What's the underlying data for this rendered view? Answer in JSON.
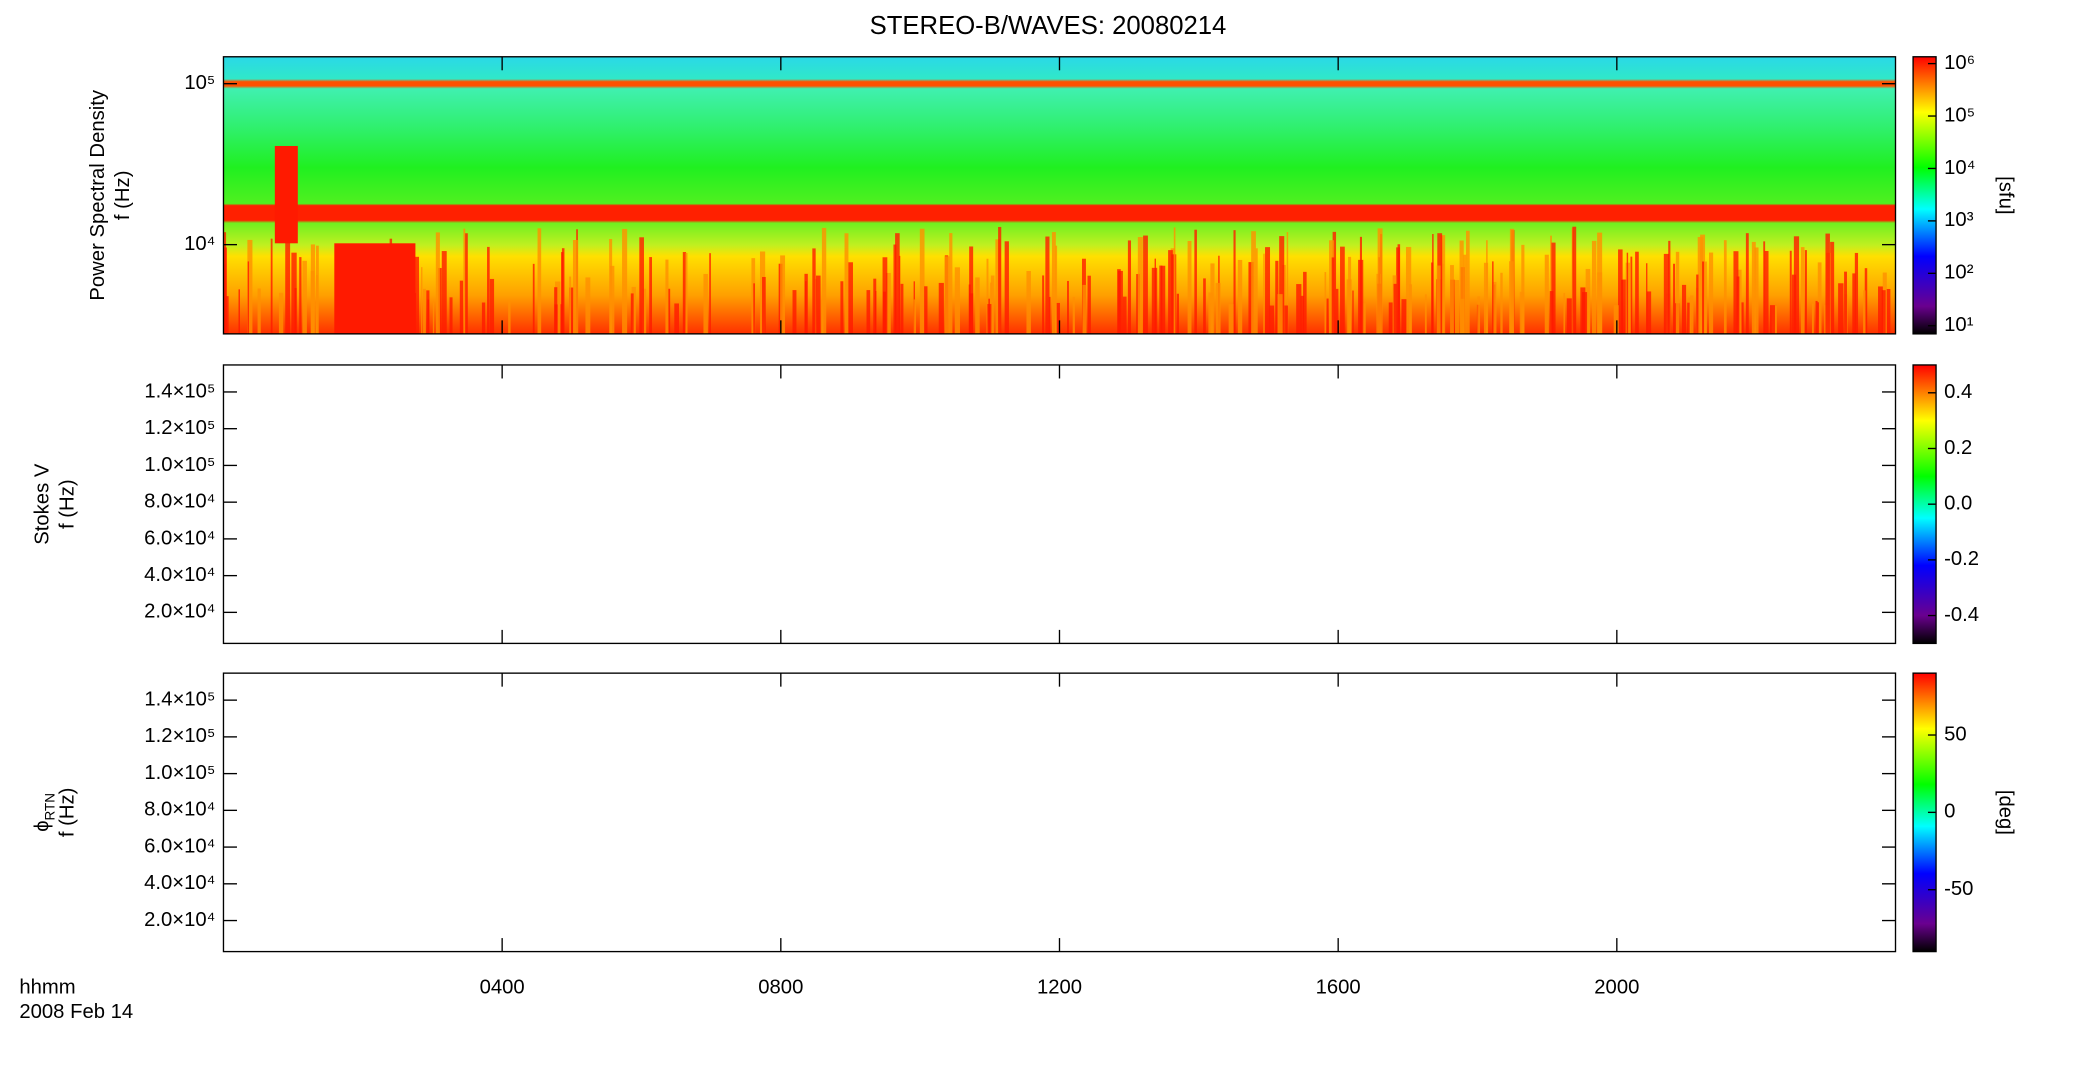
{
  "chart_data": [
    {
      "type": "heatmap",
      "title": "STEREO-B/WAVES: 20080214",
      "ylabel": "Power Spectral Density",
      "ylabel2": "f (Hz)",
      "log_y": true,
      "ylim": [
        2790,
        147000
      ],
      "yticks": [
        {
          "value": 10000,
          "label": "10⁴"
        },
        {
          "value": 100000,
          "label": "10⁵"
        }
      ],
      "xlim": [
        0,
        24
      ],
      "colorbar": {
        "log": true,
        "lim": [
          7,
          1350000
        ],
        "label": "[sfu]",
        "ticks": [
          {
            "value": 10,
            "label": "10¹"
          },
          {
            "value": 100,
            "label": "10²"
          },
          {
            "value": 1000,
            "label": "10³"
          },
          {
            "value": 10000,
            "label": "10⁴"
          },
          {
            "value": 100000,
            "label": "10⁵"
          },
          {
            "value": 1000000,
            "label": "10⁶"
          }
        ]
      }
    },
    {
      "type": "heatmap",
      "ylabel": "Stokes V",
      "ylabel2": "f (Hz)",
      "log_y": false,
      "ylim": [
        3100,
        154700
      ],
      "yticks": [
        {
          "value": 20000,
          "label": "2.0×10⁴"
        },
        {
          "value": 40000,
          "label": "4.0×10⁴"
        },
        {
          "value": 60000,
          "label": "6.0×10⁴"
        },
        {
          "value": 80000,
          "label": "8.0×10⁴"
        },
        {
          "value": 100000,
          "label": "1.0×10⁵"
        },
        {
          "value": 120000,
          "label": "1.2×10⁵"
        },
        {
          "value": 140000,
          "label": "1.4×10⁵"
        }
      ],
      "xlim": [
        0,
        24
      ],
      "colorbar": {
        "log": false,
        "lim": [
          -0.5,
          0.5
        ],
        "ticks": [
          -0.4,
          -0.2,
          {
            "value": 0,
            "label": "0.0"
          },
          0.2,
          0.4
        ]
      }
    },
    {
      "type": "heatmap",
      "ylabel": "ϕ",
      "ylabel_sub": "RTN",
      "ylabel2": "f (Hz)",
      "log_y": false,
      "ylim": [
        3100,
        154700
      ],
      "yticks": [
        {
          "value": 20000,
          "label": "2.0×10⁴"
        },
        {
          "value": 40000,
          "label": "4.0×10⁴"
        },
        {
          "value": 60000,
          "label": "6.0×10⁴"
        },
        {
          "value": 80000,
          "label": "8.0×10⁴"
        },
        {
          "value": 100000,
          "label": "1.0×10⁵"
        },
        {
          "value": 120000,
          "label": "1.2×10⁵"
        },
        {
          "value": 140000,
          "label": "1.4×10⁵"
        }
      ],
      "xlim": [
        0,
        24
      ],
      "xticks": [
        {
          "value": 4,
          "label": "0400"
        },
        {
          "value": 8,
          "label": "0800"
        },
        {
          "value": 12,
          "label": "1200"
        },
        {
          "value": 16,
          "label": "1600"
        },
        {
          "value": 20,
          "label": "2000"
        }
      ],
      "xlabel": "hhmm",
      "date": "2008 Feb 14",
      "colorbar": {
        "log": false,
        "lim": [
          -90,
          90
        ],
        "label": "[deg]",
        "ticks": [
          -50,
          0,
          50
        ]
      }
    }
  ]
}
